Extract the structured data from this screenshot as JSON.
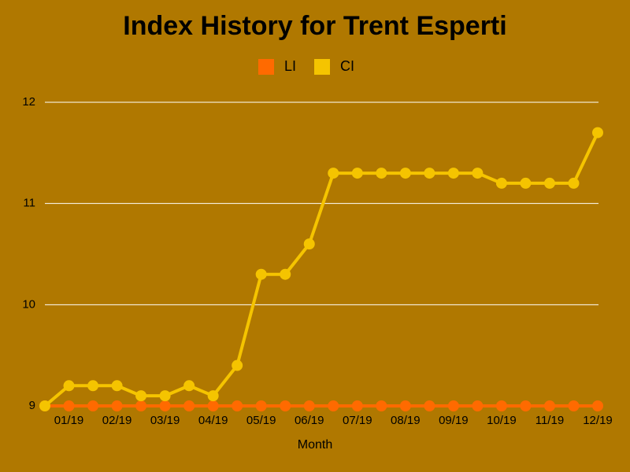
{
  "chart_data": {
    "type": "line",
    "title": "Index History for Trent Esperti",
    "x_label": "Month",
    "categories": [
      null,
      "01/19",
      null,
      "02/19",
      null,
      "03/19",
      null,
      "04/19",
      null,
      "05/19",
      null,
      "06/19",
      null,
      "07/19",
      null,
      "08/19",
      null,
      "09/19",
      null,
      "10/19",
      null,
      "11/19",
      null,
      "12/19"
    ],
    "series": [
      {
        "name": "LI",
        "color": "#ff6a00",
        "values": [
          9,
          9,
          9,
          9,
          9,
          9,
          9,
          9,
          9,
          9,
          9,
          9,
          9,
          9,
          9,
          9,
          9,
          9,
          9,
          9,
          9,
          9,
          9,
          9
        ]
      },
      {
        "name": "CI",
        "color": "#f5c400",
        "values": [
          9,
          9.2,
          9.2,
          9.2,
          9.1,
          9.1,
          9.2,
          9.1,
          9.4,
          10.3,
          10.3,
          10.6,
          11.3,
          11.3,
          11.3,
          11.3,
          11.3,
          11.3,
          11.3,
          11.2,
          11.2,
          11.2,
          11.2,
          11.7
        ]
      }
    ],
    "ylim": [
      9,
      12
    ],
    "yticks": [
      9,
      10,
      11,
      12
    ],
    "grid": true
  }
}
